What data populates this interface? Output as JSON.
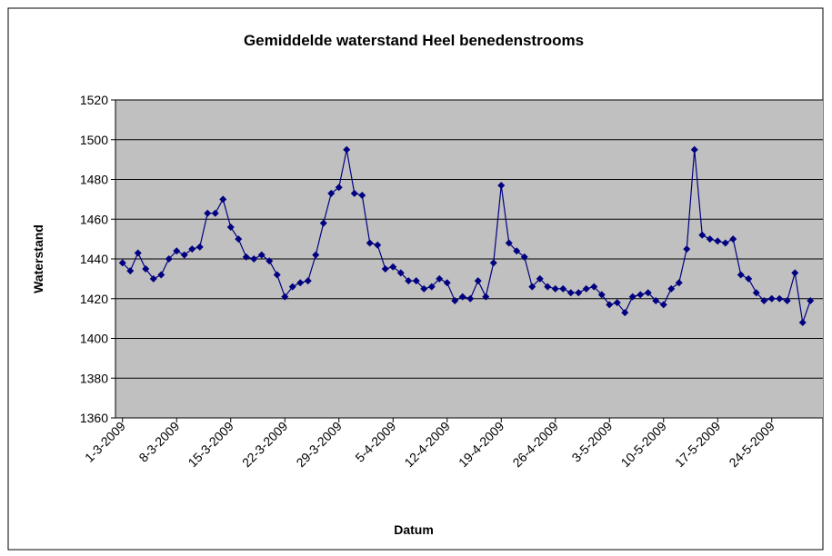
{
  "chart_data": {
    "type": "line",
    "title": "Gemiddelde waterstand Heel benedenstrooms",
    "x_label": "Datum",
    "y_label": "Waterstand",
    "categories": [
      "1-3-2009",
      null,
      null,
      null,
      null,
      null,
      null,
      "8-3-2009",
      null,
      null,
      null,
      null,
      null,
      null,
      "15-3-2009",
      null,
      null,
      null,
      null,
      null,
      null,
      "22-3-2009",
      null,
      null,
      null,
      null,
      null,
      null,
      "29-3-2009",
      null,
      null,
      null,
      null,
      null,
      null,
      "5-4-2009",
      null,
      null,
      null,
      null,
      null,
      null,
      "12-4-2009",
      null,
      null,
      null,
      null,
      null,
      null,
      "19-4-2009",
      null,
      null,
      null,
      null,
      null,
      null,
      "26-4-2009",
      null,
      null,
      null,
      null,
      null,
      null,
      "3-5-2009",
      null,
      null,
      null,
      null,
      null,
      null,
      "10-5-2009",
      null,
      null,
      null,
      null,
      null,
      null,
      "17-5-2009",
      null,
      null,
      null,
      null,
      null,
      null,
      "24-5-2009",
      null,
      null,
      null,
      null,
      null
    ],
    "series": [
      {
        "color": "#000080",
        "values": [
          1438,
          1434,
          1443,
          1435,
          1430,
          1432,
          1440,
          1444,
          1442,
          1445,
          1446,
          1463,
          1463,
          1470,
          1456,
          1450,
          1441,
          1440,
          1442,
          1439,
          1432,
          1421,
          1426,
          1428,
          1429,
          1442,
          1458,
          1473,
          1476,
          1495,
          1473,
          1472,
          1448,
          1447,
          1435,
          1436,
          1433,
          1429,
          1429,
          1425,
          1426,
          1430,
          1428,
          1419,
          1421,
          1420,
          1429,
          1421,
          1438,
          1477,
          1448,
          1444,
          1441,
          1426,
          1430,
          1426,
          1425,
          1425,
          1423,
          1423,
          1425,
          1426,
          1422,
          1417,
          1418,
          1413,
          1421,
          1422,
          1423,
          1419,
          1417,
          1425,
          1428,
          1445,
          1495,
          1452,
          1450,
          1449,
          1448,
          1450,
          1432,
          1430,
          1423,
          1419,
          1420,
          1420,
          1419,
          1433,
          1408,
          1419
        ]
      }
    ],
    "ylim": [
      1360,
      1520
    ],
    "yticks": [
      1360,
      1380,
      1400,
      1420,
      1440,
      1460,
      1480,
      1500,
      1520
    ],
    "grid": true
  }
}
